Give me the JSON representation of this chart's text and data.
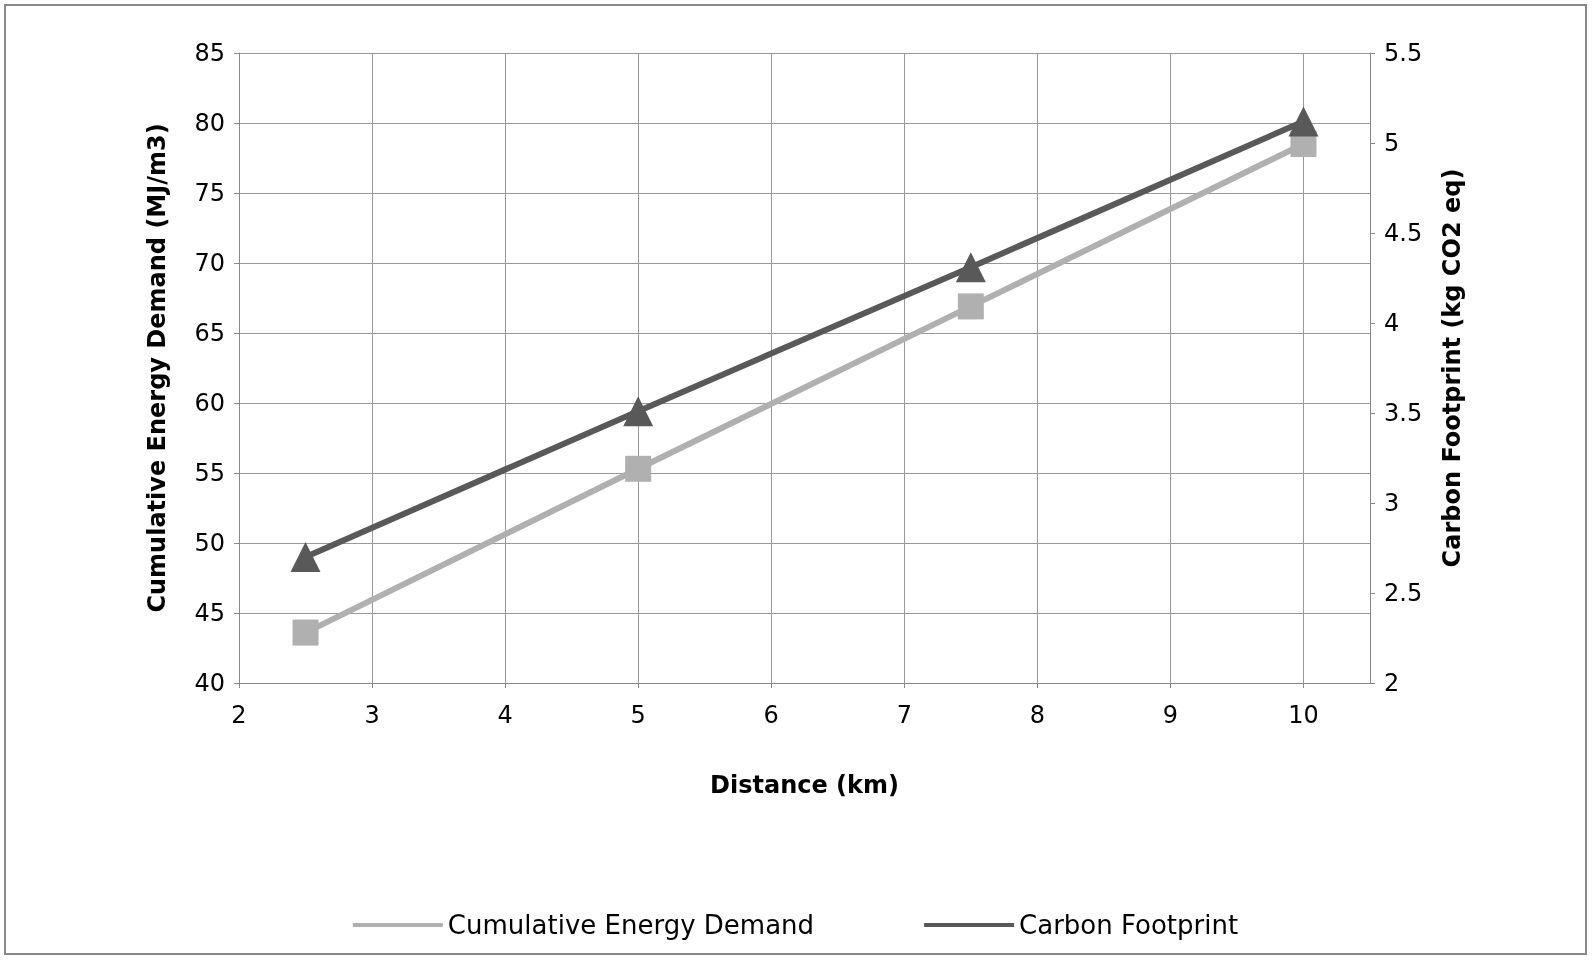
{
  "chart_data": {
    "type": "line",
    "xlabel": "Distance (km)",
    "ylabel": "Cumulative Energy Demand (MJ/m3)",
    "y2label": "Carbon Footprint (kg CO2 eq)",
    "x": [
      2.5,
      5,
      7.5,
      10
    ],
    "series": [
      {
        "name": "Cumulative Energy Demand",
        "color": "#b0b0b0",
        "marker": "square",
        "values": [
          43.6,
          55.3,
          66.9,
          78.5
        ]
      },
      {
        "name": "Carbon Footprint",
        "color": "#595959",
        "marker": "triangle",
        "axis": "y2",
        "values": [
          2.7,
          3.51,
          4.31,
          5.12
        ]
      }
    ],
    "xlim": [
      2,
      10.5
    ],
    "xticks": [
      2,
      3,
      4,
      5,
      6,
      7,
      8,
      9,
      10
    ],
    "ylim": [
      40,
      85
    ],
    "yticks": [
      40,
      45,
      50,
      55,
      60,
      65,
      70,
      75,
      80,
      85
    ],
    "y2lim": [
      2,
      5.5
    ],
    "y2ticks": [
      2,
      2.5,
      3,
      3.5,
      4,
      4.5,
      5,
      5.5
    ],
    "grid": true,
    "legend": "bottom",
    "line_style": "solid"
  }
}
